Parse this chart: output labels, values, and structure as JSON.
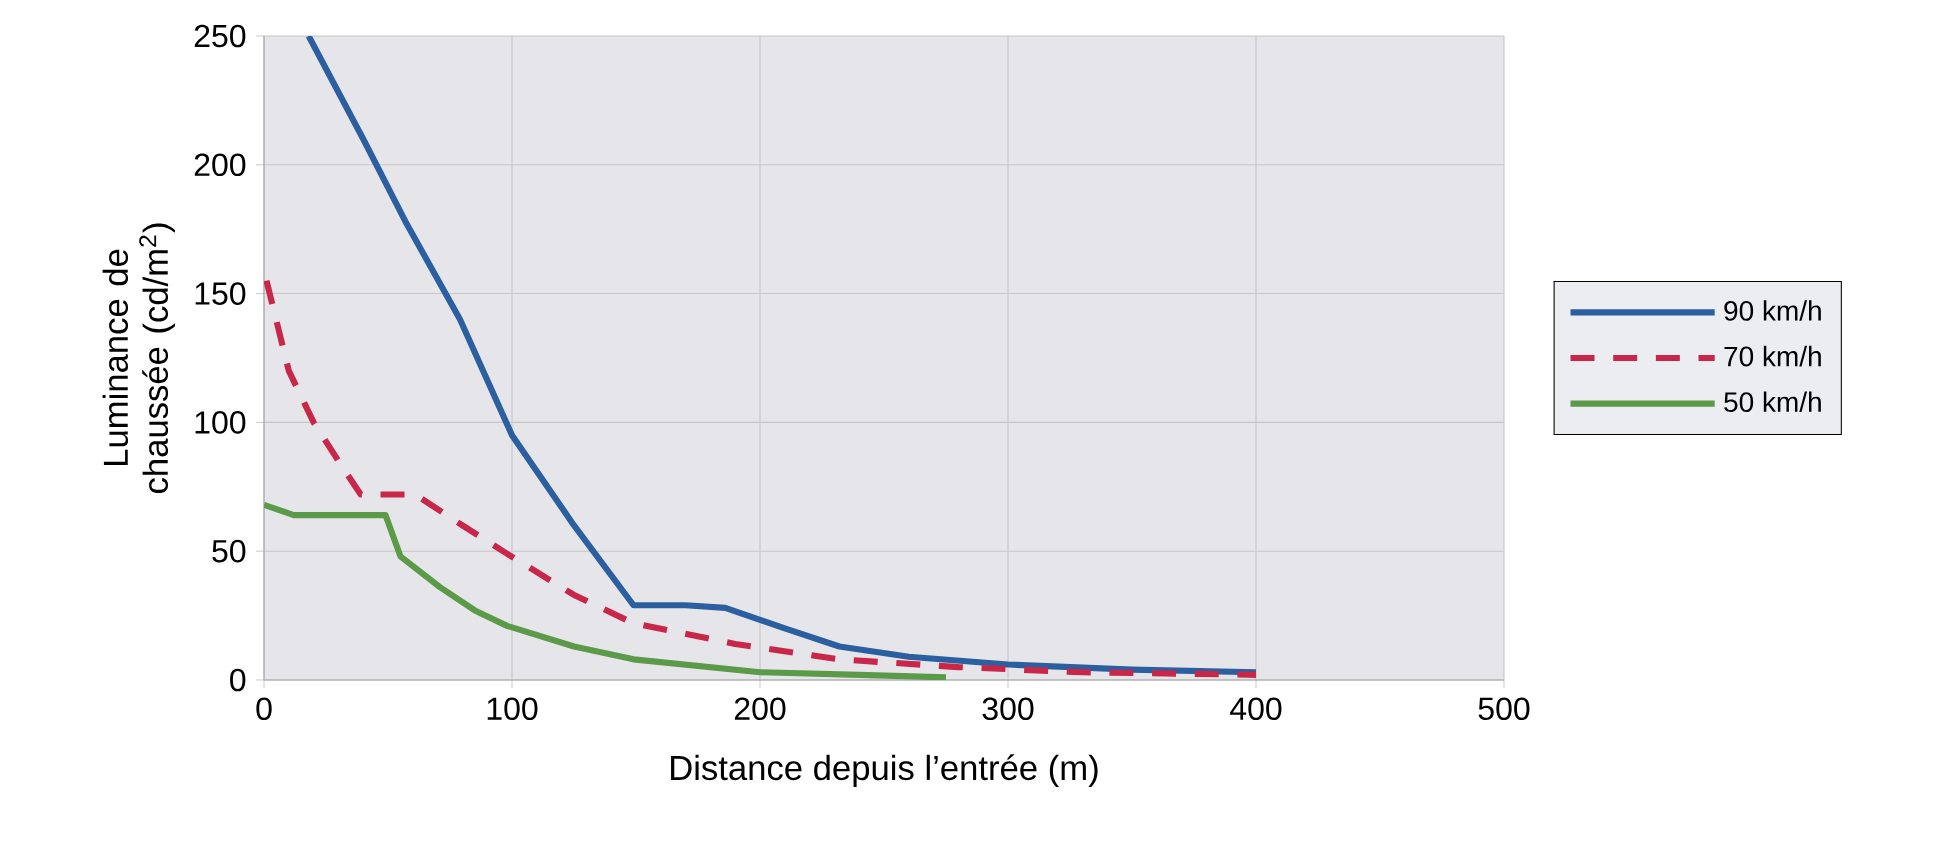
{
  "chart_data": {
    "type": "line",
    "xlabel": "Distance depuis l’entrée (m)",
    "ylabel": "Luminance de chaussée (cd/m$^{2}$)",
    "xlim": [
      0,
      500
    ],
    "ylim": [
      0,
      250
    ],
    "xticks": [
      0,
      100,
      200,
      300,
      400,
      500
    ],
    "yticks": [
      0,
      50,
      100,
      150,
      200,
      250
    ],
    "grid": true,
    "legend": "right",
    "series": [
      {
        "name": "90 km/h",
        "color": "#2b5fa0",
        "line_style": "solid",
        "x": [
          18,
          40,
          57,
          79,
          100,
          125,
          149,
          170,
          186,
          210,
          232,
          260,
          300,
          350,
          400
        ],
        "values": [
          250,
          210,
          178,
          140,
          95,
          60,
          29,
          29,
          28,
          20,
          13,
          9,
          6,
          4,
          3
        ]
      },
      {
        "name": "70 km/h",
        "color": "#c8274a",
        "line_style": "dashed",
        "x": [
          1,
          10,
          20,
          30,
          39,
          50,
          61,
          80,
          98,
          125,
          149,
          190,
          232,
          280,
          330,
          400
        ],
        "values": [
          155,
          120,
          100,
          85,
          72,
          72,
          72,
          60,
          49,
          33,
          22,
          14,
          8,
          5,
          3,
          2
        ]
      },
      {
        "name": "50 km/h",
        "color": "#5a9a48",
        "line_style": "solid",
        "x": [
          0,
          12,
          30,
          49,
          55,
          71,
          85,
          98,
          125,
          149,
          200,
          240,
          275
        ],
        "values": [
          68,
          64,
          64,
          64,
          48,
          36,
          27,
          21,
          13,
          8,
          3,
          2,
          1
        ]
      }
    ]
  }
}
